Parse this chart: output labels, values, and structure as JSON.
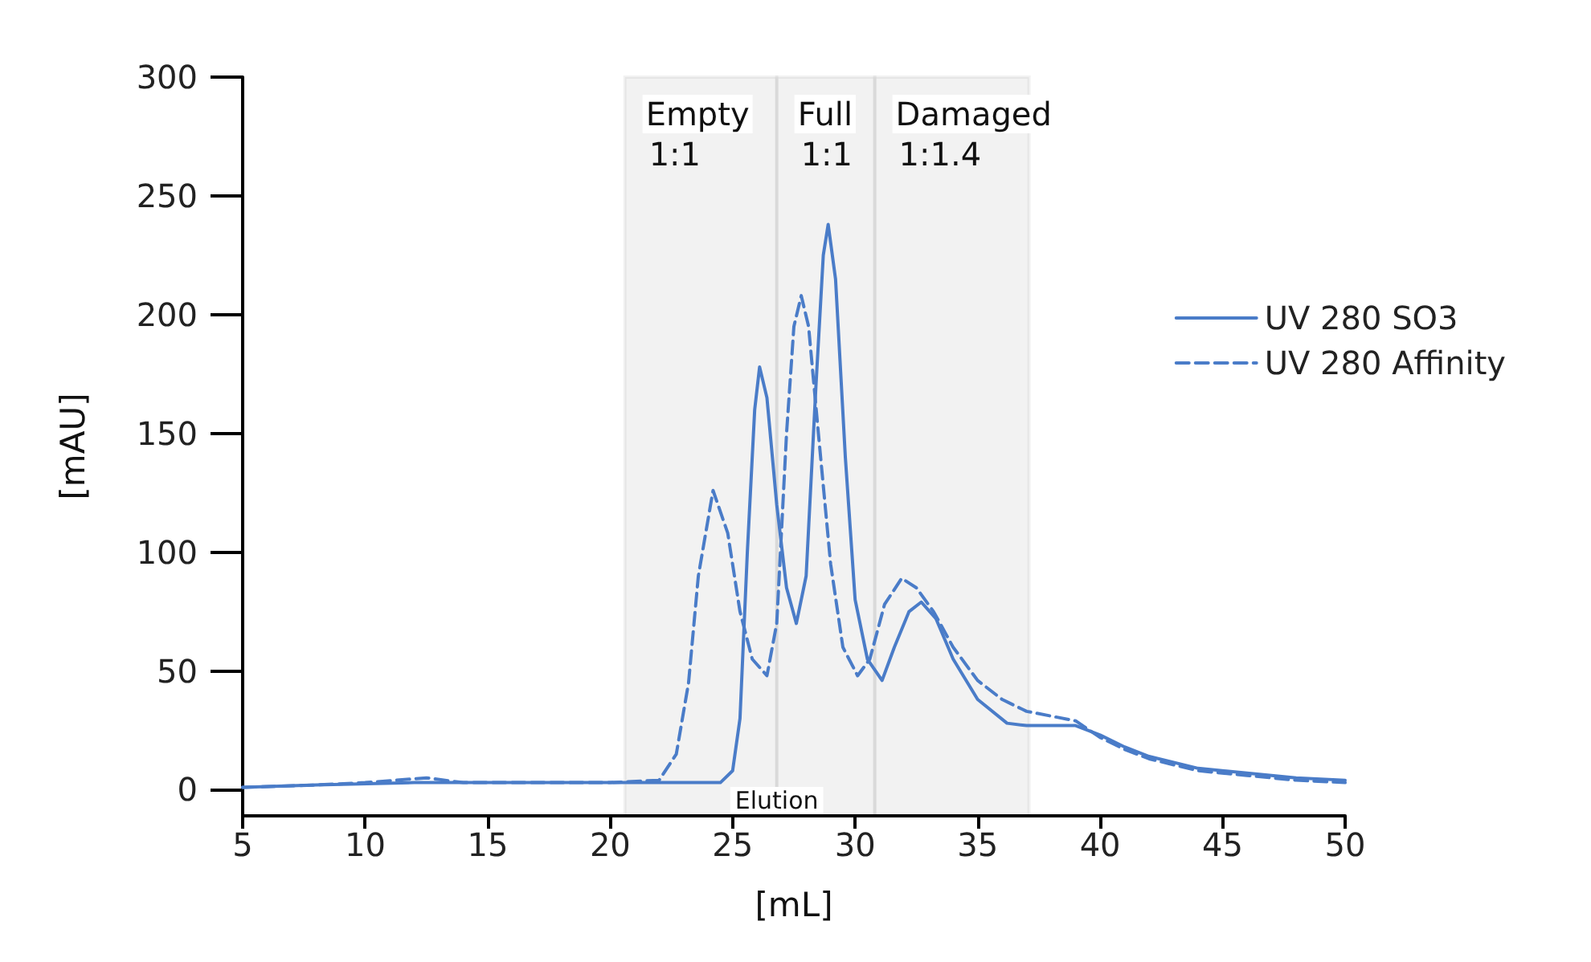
{
  "chart_data": {
    "type": "line",
    "xlabel": "[mL]",
    "ylabel": "[mAU]",
    "xlim": [
      5,
      50
    ],
    "xticks": [
      5,
      10,
      15,
      20,
      25,
      30,
      35,
      40,
      45,
      50
    ],
    "ylim": [
      -11,
      300
    ],
    "yticks": [
      0,
      50,
      100,
      150,
      200,
      250,
      300
    ],
    "grid": false,
    "legend": "right",
    "marker": "none",
    "series": [
      {
        "name": "UV 280 SO3",
        "color": "#4a7cc8",
        "line_style": "solid",
        "x": [
          5,
          8,
          12,
          16,
          20,
          23,
          24.5,
          25,
          25.3,
          25.6,
          25.9,
          26.1,
          26.4,
          26.8,
          27.2,
          27.6,
          28,
          28.4,
          28.7,
          28.9,
          29.2,
          29.6,
          30,
          30.5,
          31.1,
          31.6,
          32.2,
          32.7,
          33.3,
          34,
          35,
          36.2,
          37,
          38,
          39,
          40,
          41,
          42,
          44,
          46,
          48,
          50
        ],
        "values": [
          1,
          2,
          3,
          3,
          3,
          3,
          3,
          8,
          30,
          100,
          160,
          178,
          165,
          120,
          85,
          70,
          90,
          170,
          225,
          238,
          215,
          140,
          80,
          55,
          46,
          60,
          75,
          79,
          72,
          55,
          38,
          28,
          27,
          27,
          27,
          23,
          18,
          14,
          9,
          7,
          5,
          4
        ]
      },
      {
        "name": "UV 280 Affinity",
        "color": "#4a7cc8",
        "line_style": "dashed",
        "x": [
          5,
          8,
          10,
          12.5,
          14,
          16,
          20,
          22,
          22.7,
          23.2,
          23.6,
          24.2,
          24.8,
          25.3,
          25.8,
          26.4,
          26.8,
          27.2,
          27.5,
          27.8,
          28.1,
          28.5,
          29,
          29.5,
          30.1,
          30.6,
          31.2,
          31.9,
          32.5,
          33.2,
          34,
          35,
          36,
          37,
          38,
          39,
          40,
          41,
          42,
          44,
          46,
          48,
          50
        ],
        "values": [
          1,
          2,
          3,
          5,
          3,
          3,
          3,
          4,
          15,
          45,
          90,
          126,
          108,
          75,
          55,
          48,
          70,
          150,
          195,
          208,
          195,
          150,
          95,
          60,
          48,
          55,
          78,
          89,
          85,
          75,
          60,
          46,
          38,
          33,
          31,
          29,
          22,
          17,
          13,
          8,
          6,
          4,
          3
        ]
      }
    ],
    "bands": [
      {
        "axis": "x",
        "from": 20.6,
        "to": 26.8,
        "label": "Empty",
        "color": "#000000"
      },
      {
        "axis": "x",
        "from": 26.8,
        "to": 30.8,
        "label": "Full",
        "color": "#000000"
      },
      {
        "axis": "x",
        "from": 30.8,
        "to": 37.1,
        "label": "Damaged",
        "color": "#000000"
      }
    ],
    "annotations": [
      "1:1",
      "1:1",
      "1:1.4",
      "Elution"
    ]
  }
}
